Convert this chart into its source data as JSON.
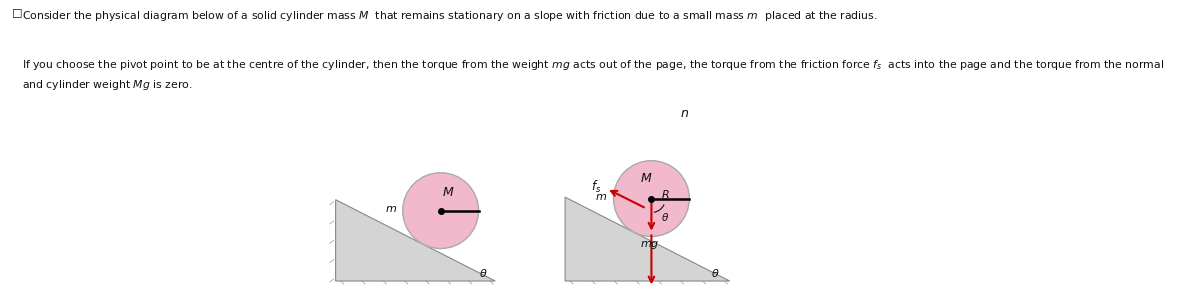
{
  "bg_color": "#ffffff",
  "text_color": "#111111",
  "circle_color": "#f2b8cc",
  "circle_edge_color": "#aaaaaa",
  "slope_color": "#d4d4d4",
  "slope_edge_color": "#888888",
  "arrow_color": "#cc0000",
  "title": "Consider the physical diagram below of a solid cylinder mass $M$  that remains stationary on a slope with friction due to a small mass $m$  placed at the radius.",
  "body": "If you choose the pivot point to be at the centre of the cylinder, then the torque from the weight $mg$ acts out of the page, the torque from the friction force $f_s$  acts into the page and the torque from the normal\nand cylinder weight $Mg$ is zero."
}
